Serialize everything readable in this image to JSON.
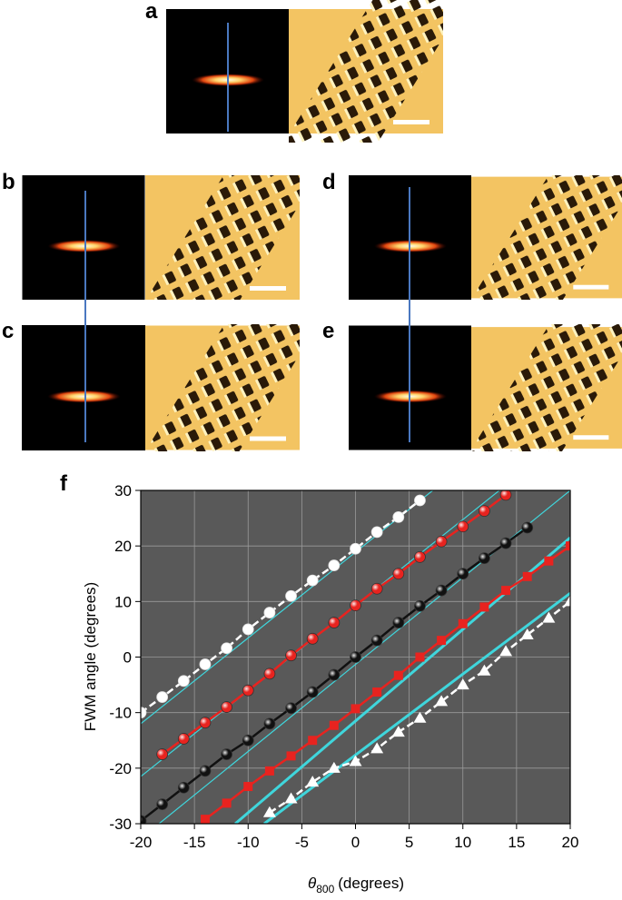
{
  "panels": [
    {
      "label": "a"
    },
    {
      "label": "b"
    },
    {
      "label": "c"
    },
    {
      "label": "d"
    },
    {
      "label": "e"
    },
    {
      "label": "f"
    }
  ],
  "chart_data": {
    "type": "line",
    "y_label": "FWM angle (degrees)",
    "x_label": {
      "symbol": "θ",
      "subscript": "800",
      "unit": "(degrees)"
    },
    "xlim": [
      -20,
      20
    ],
    "xticks": [
      -20,
      -15,
      -10,
      -5,
      0,
      5,
      10,
      15,
      20
    ],
    "ylim": [
      -30,
      30
    ],
    "yticks": [
      -30,
      -20,
      -10,
      0,
      10,
      20,
      30
    ],
    "grid": true,
    "background": "#595959",
    "series": [
      {
        "color": "#3fd6dc",
        "width": 1.2,
        "x": [
          -20,
          7.2
        ],
        "values": [
          -12,
          30
        ]
      },
      {
        "color": "#3fd6dc",
        "width": 1.2,
        "x": [
          -20,
          13.4
        ],
        "values": [
          -21.5,
          30
        ]
      },
      {
        "color": "#3fd6dc",
        "width": 1.2,
        "x": [
          -18.3,
          20
        ],
        "values": [
          -30,
          30
        ]
      },
      {
        "color": "#3fd6dc",
        "width": 3,
        "x": [
          -11.2,
          20
        ],
        "values": [
          -30,
          21.5
        ]
      },
      {
        "color": "#3fd6dc",
        "width": 3,
        "x": [
          -8.5,
          20
        ],
        "values": [
          -30,
          11.5
        ]
      },
      {
        "color": "#ffffff",
        "marker": "circle",
        "dashed": true,
        "x": [
          -20,
          -18,
          -16,
          -14,
          -12,
          -10,
          -8,
          -6,
          -4,
          -2,
          0,
          2,
          4,
          6
        ],
        "values": [
          -10,
          -7.2,
          -4.3,
          -1.3,
          1.6,
          5,
          8,
          11,
          13.8,
          16.5,
          19.5,
          22.5,
          25.2,
          28.2
        ]
      },
      {
        "color": "#e8231f",
        "marker": "sphere",
        "x": [
          -18,
          -16,
          -14,
          -12,
          -10,
          -8,
          -6,
          -4,
          -2,
          0,
          2,
          4,
          6,
          8,
          10,
          12,
          14
        ],
        "values": [
          -17.5,
          -14.7,
          -11.8,
          -9,
          -6,
          -3,
          0.3,
          3.3,
          6.2,
          9.3,
          12.3,
          15,
          18,
          20.8,
          23.5,
          26.3,
          29.2
        ]
      },
      {
        "color": "#111111",
        "marker": "sphere",
        "x": [
          -20,
          -18,
          -16,
          -14,
          -12,
          -10,
          -8,
          -6,
          -4,
          -2,
          0,
          2,
          4,
          6,
          8,
          10,
          12,
          14,
          16
        ],
        "values": [
          -29.5,
          -26.5,
          -23.5,
          -20.5,
          -17.5,
          -15,
          -12,
          -9.2,
          -6.3,
          -3.2,
          0,
          3,
          6.2,
          9.2,
          12,
          15,
          17.8,
          20.5,
          23.3
        ]
      },
      {
        "color": "#e8231f",
        "marker": "square",
        "x": [
          -14,
          -12,
          -10,
          -8,
          -6,
          -4,
          -2,
          0,
          2,
          4,
          6,
          8,
          10,
          12,
          14,
          16,
          18,
          20
        ],
        "values": [
          -29.2,
          -26.3,
          -23.3,
          -20.5,
          -17.8,
          -15,
          -12.3,
          -9.3,
          -6.3,
          -3.3,
          0,
          3,
          6,
          9,
          12,
          14.5,
          17.3,
          20
        ]
      },
      {
        "color": "#ffffff",
        "marker": "triangle",
        "dashed": true,
        "x": [
          -8,
          -6,
          -4,
          -2,
          0,
          2,
          4,
          6,
          8,
          10,
          12,
          14,
          16,
          18,
          20
        ],
        "values": [
          -28,
          -25.5,
          -22.5,
          -20,
          -18.8,
          -16.5,
          -13.5,
          -11,
          -8,
          -5,
          -2.5,
          1,
          4,
          7,
          10
        ]
      }
    ]
  }
}
